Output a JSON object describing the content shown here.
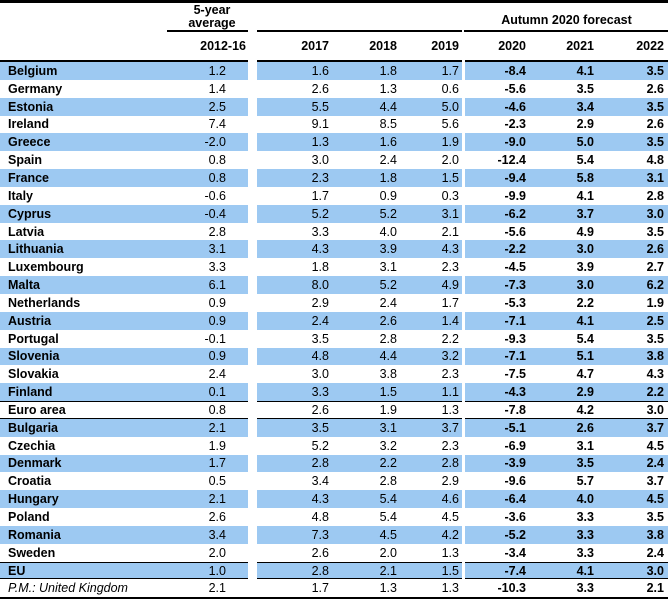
{
  "table": {
    "header": {
      "group1": "5-year average",
      "group2": "Autumn 2020 forecast",
      "columns": [
        "2012-16",
        "2017",
        "2018",
        "2019",
        "2020",
        "2021",
        "2022"
      ]
    },
    "rows": [
      {
        "country": "Belgium",
        "values": [
          "1.2",
          "1.6",
          "1.8",
          "1.7",
          "-8.4",
          "4.1",
          "3.5"
        ]
      },
      {
        "country": "Germany",
        "values": [
          "1.4",
          "2.6",
          "1.3",
          "0.6",
          "-5.6",
          "3.5",
          "2.6"
        ]
      },
      {
        "country": "Estonia",
        "values": [
          "2.5",
          "5.5",
          "4.4",
          "5.0",
          "-4.6",
          "3.4",
          "3.5"
        ]
      },
      {
        "country": "Ireland",
        "values": [
          "7.4",
          "9.1",
          "8.5",
          "5.6",
          "-2.3",
          "2.9",
          "2.6"
        ]
      },
      {
        "country": "Greece",
        "values": [
          "-2.0",
          "1.3",
          "1.6",
          "1.9",
          "-9.0",
          "5.0",
          "3.5"
        ]
      },
      {
        "country": "Spain",
        "values": [
          "0.8",
          "3.0",
          "2.4",
          "2.0",
          "-12.4",
          "5.4",
          "4.8"
        ]
      },
      {
        "country": "France",
        "values": [
          "0.8",
          "2.3",
          "1.8",
          "1.5",
          "-9.4",
          "5.8",
          "3.1"
        ]
      },
      {
        "country": "Italy",
        "values": [
          "-0.6",
          "1.7",
          "0.9",
          "0.3",
          "-9.9",
          "4.1",
          "2.8"
        ]
      },
      {
        "country": "Cyprus",
        "values": [
          "-0.4",
          "5.2",
          "5.2",
          "3.1",
          "-6.2",
          "3.7",
          "3.0"
        ]
      },
      {
        "country": "Latvia",
        "values": [
          "2.8",
          "3.3",
          "4.0",
          "2.1",
          "-5.6",
          "4.9",
          "3.5"
        ]
      },
      {
        "country": "Lithuania",
        "values": [
          "3.1",
          "4.3",
          "3.9",
          "4.3",
          "-2.2",
          "3.0",
          "2.6"
        ]
      },
      {
        "country": "Luxembourg",
        "values": [
          "3.3",
          "1.8",
          "3.1",
          "2.3",
          "-4.5",
          "3.9",
          "2.7"
        ]
      },
      {
        "country": "Malta",
        "values": [
          "6.1",
          "8.0",
          "5.2",
          "4.9",
          "-7.3",
          "3.0",
          "6.2"
        ]
      },
      {
        "country": "Netherlands",
        "values": [
          "0.9",
          "2.9",
          "2.4",
          "1.7",
          "-5.3",
          "2.2",
          "1.9"
        ]
      },
      {
        "country": "Austria",
        "values": [
          "0.9",
          "2.4",
          "2.6",
          "1.4",
          "-7.1",
          "4.1",
          "2.5"
        ]
      },
      {
        "country": "Portugal",
        "values": [
          "-0.1",
          "3.5",
          "2.8",
          "2.2",
          "-9.3",
          "5.4",
          "3.5"
        ]
      },
      {
        "country": "Slovenia",
        "values": [
          "0.9",
          "4.8",
          "4.4",
          "3.2",
          "-7.1",
          "5.1",
          "3.8"
        ]
      },
      {
        "country": "Slovakia",
        "values": [
          "2.4",
          "3.0",
          "3.8",
          "2.3",
          "-7.5",
          "4.7",
          "4.3"
        ]
      },
      {
        "country": "Finland",
        "values": [
          "0.1",
          "3.3",
          "1.5",
          "1.1",
          "-4.3",
          "2.9",
          "2.2"
        ]
      },
      {
        "country": "Euro area",
        "values": [
          "0.8",
          "2.6",
          "1.9",
          "1.3",
          "-7.8",
          "4.2",
          "3.0"
        ],
        "separator": true
      },
      {
        "country": "Bulgaria",
        "values": [
          "2.1",
          "3.5",
          "3.1",
          "3.7",
          "-5.1",
          "2.6",
          "3.7"
        ]
      },
      {
        "country": "Czechia",
        "values": [
          "1.9",
          "5.2",
          "3.2",
          "2.3",
          "-6.9",
          "3.1",
          "4.5"
        ]
      },
      {
        "country": "Denmark",
        "values": [
          "1.7",
          "2.8",
          "2.2",
          "2.8",
          "-3.9",
          "3.5",
          "2.4"
        ]
      },
      {
        "country": "Croatia",
        "values": [
          "0.5",
          "3.4",
          "2.8",
          "2.9",
          "-9.6",
          "5.7",
          "3.7"
        ]
      },
      {
        "country": "Hungary",
        "values": [
          "2.1",
          "4.3",
          "5.4",
          "4.6",
          "-6.4",
          "4.0",
          "4.5"
        ]
      },
      {
        "country": "Poland",
        "values": [
          "2.6",
          "4.8",
          "5.4",
          "4.5",
          "-3.6",
          "3.3",
          "3.5"
        ]
      },
      {
        "country": "Romania",
        "values": [
          "3.4",
          "7.3",
          "4.5",
          "4.2",
          "-5.2",
          "3.3",
          "3.8"
        ]
      },
      {
        "country": "Sweden",
        "values": [
          "2.0",
          "2.6",
          "2.0",
          "1.3",
          "-3.4",
          "3.3",
          "2.4"
        ]
      },
      {
        "country": "EU",
        "values": [
          "1.0",
          "2.8",
          "2.1",
          "1.5",
          "-7.4",
          "4.1",
          "3.0"
        ],
        "separator": true
      },
      {
        "country": "P.M.: United Kingdom",
        "values": [
          "2.1",
          "1.7",
          "1.3",
          "1.3",
          "-10.3",
          "3.3",
          "2.1"
        ],
        "memo": true
      }
    ]
  },
  "colors": {
    "row_highlight": "#9DC9F2",
    "rule": "#000000"
  }
}
